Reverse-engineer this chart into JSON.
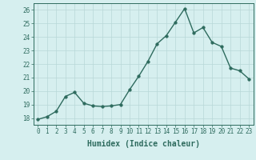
{
  "x": [
    0,
    1,
    2,
    3,
    4,
    5,
    6,
    7,
    8,
    9,
    10,
    11,
    12,
    13,
    14,
    15,
    16,
    17,
    18,
    19,
    20,
    21,
    22,
    23
  ],
  "y": [
    17.9,
    18.1,
    18.5,
    19.6,
    19.9,
    19.1,
    18.9,
    18.85,
    18.9,
    19.0,
    20.1,
    21.1,
    22.2,
    23.5,
    24.1,
    25.1,
    26.1,
    24.3,
    24.7,
    23.6,
    23.3,
    21.7,
    21.5,
    20.9
  ],
  "xlabel": "Humidex (Indice chaleur)",
  "xlim": [
    -0.5,
    23.5
  ],
  "ylim": [
    17.5,
    26.5
  ],
  "yticks": [
    18,
    19,
    20,
    21,
    22,
    23,
    24,
    25,
    26
  ],
  "xticks": [
    0,
    1,
    2,
    3,
    4,
    5,
    6,
    7,
    8,
    9,
    10,
    11,
    12,
    13,
    14,
    15,
    16,
    17,
    18,
    19,
    20,
    21,
    22,
    23
  ],
  "xtick_labels": [
    "0",
    "1",
    "2",
    "3",
    "4",
    "5",
    "6",
    "7",
    "8",
    "9",
    "10",
    "11",
    "12",
    "13",
    "14",
    "15",
    "16",
    "17",
    "18",
    "19",
    "20",
    "21",
    "22",
    "23"
  ],
  "line_color": "#2e6b5e",
  "marker_size": 2.5,
  "line_width": 1.0,
  "bg_color": "#d6efef",
  "grid_color": "#b8d8d8",
  "axes_color": "#2e6b5e",
  "tick_color": "#2e6b5e",
  "label_color": "#2e6b5e",
  "axis_fontsize": 7,
  "tick_fontsize": 5.5
}
